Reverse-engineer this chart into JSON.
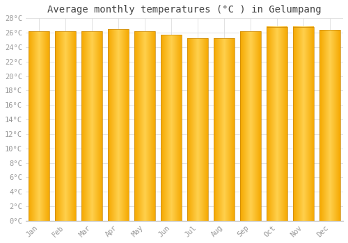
{
  "title": "Average monthly temperatures (°C ) in Gelumpang",
  "months": [
    "Jan",
    "Feb",
    "Mar",
    "Apr",
    "May",
    "Jun",
    "Jul",
    "Aug",
    "Sep",
    "Oct",
    "Nov",
    "Dec"
  ],
  "values": [
    26.2,
    26.2,
    26.2,
    26.5,
    26.2,
    25.7,
    25.2,
    25.2,
    26.2,
    26.8,
    26.8,
    26.4
  ],
  "bar_color_center": "#FFD04D",
  "bar_color_edge": "#F5A800",
  "bar_edge_color": "#C8870A",
  "background_color": "#FFFFFF",
  "grid_color": "#DDDDDD",
  "ylim": [
    0,
    28
  ],
  "yticks": [
    0,
    2,
    4,
    6,
    8,
    10,
    12,
    14,
    16,
    18,
    20,
    22,
    24,
    26,
    28
  ],
  "title_fontsize": 10,
  "tick_fontsize": 7.5,
  "tick_font_color": "#999999",
  "bar_width": 0.78,
  "figsize": [
    5.0,
    3.5
  ],
  "dpi": 100
}
